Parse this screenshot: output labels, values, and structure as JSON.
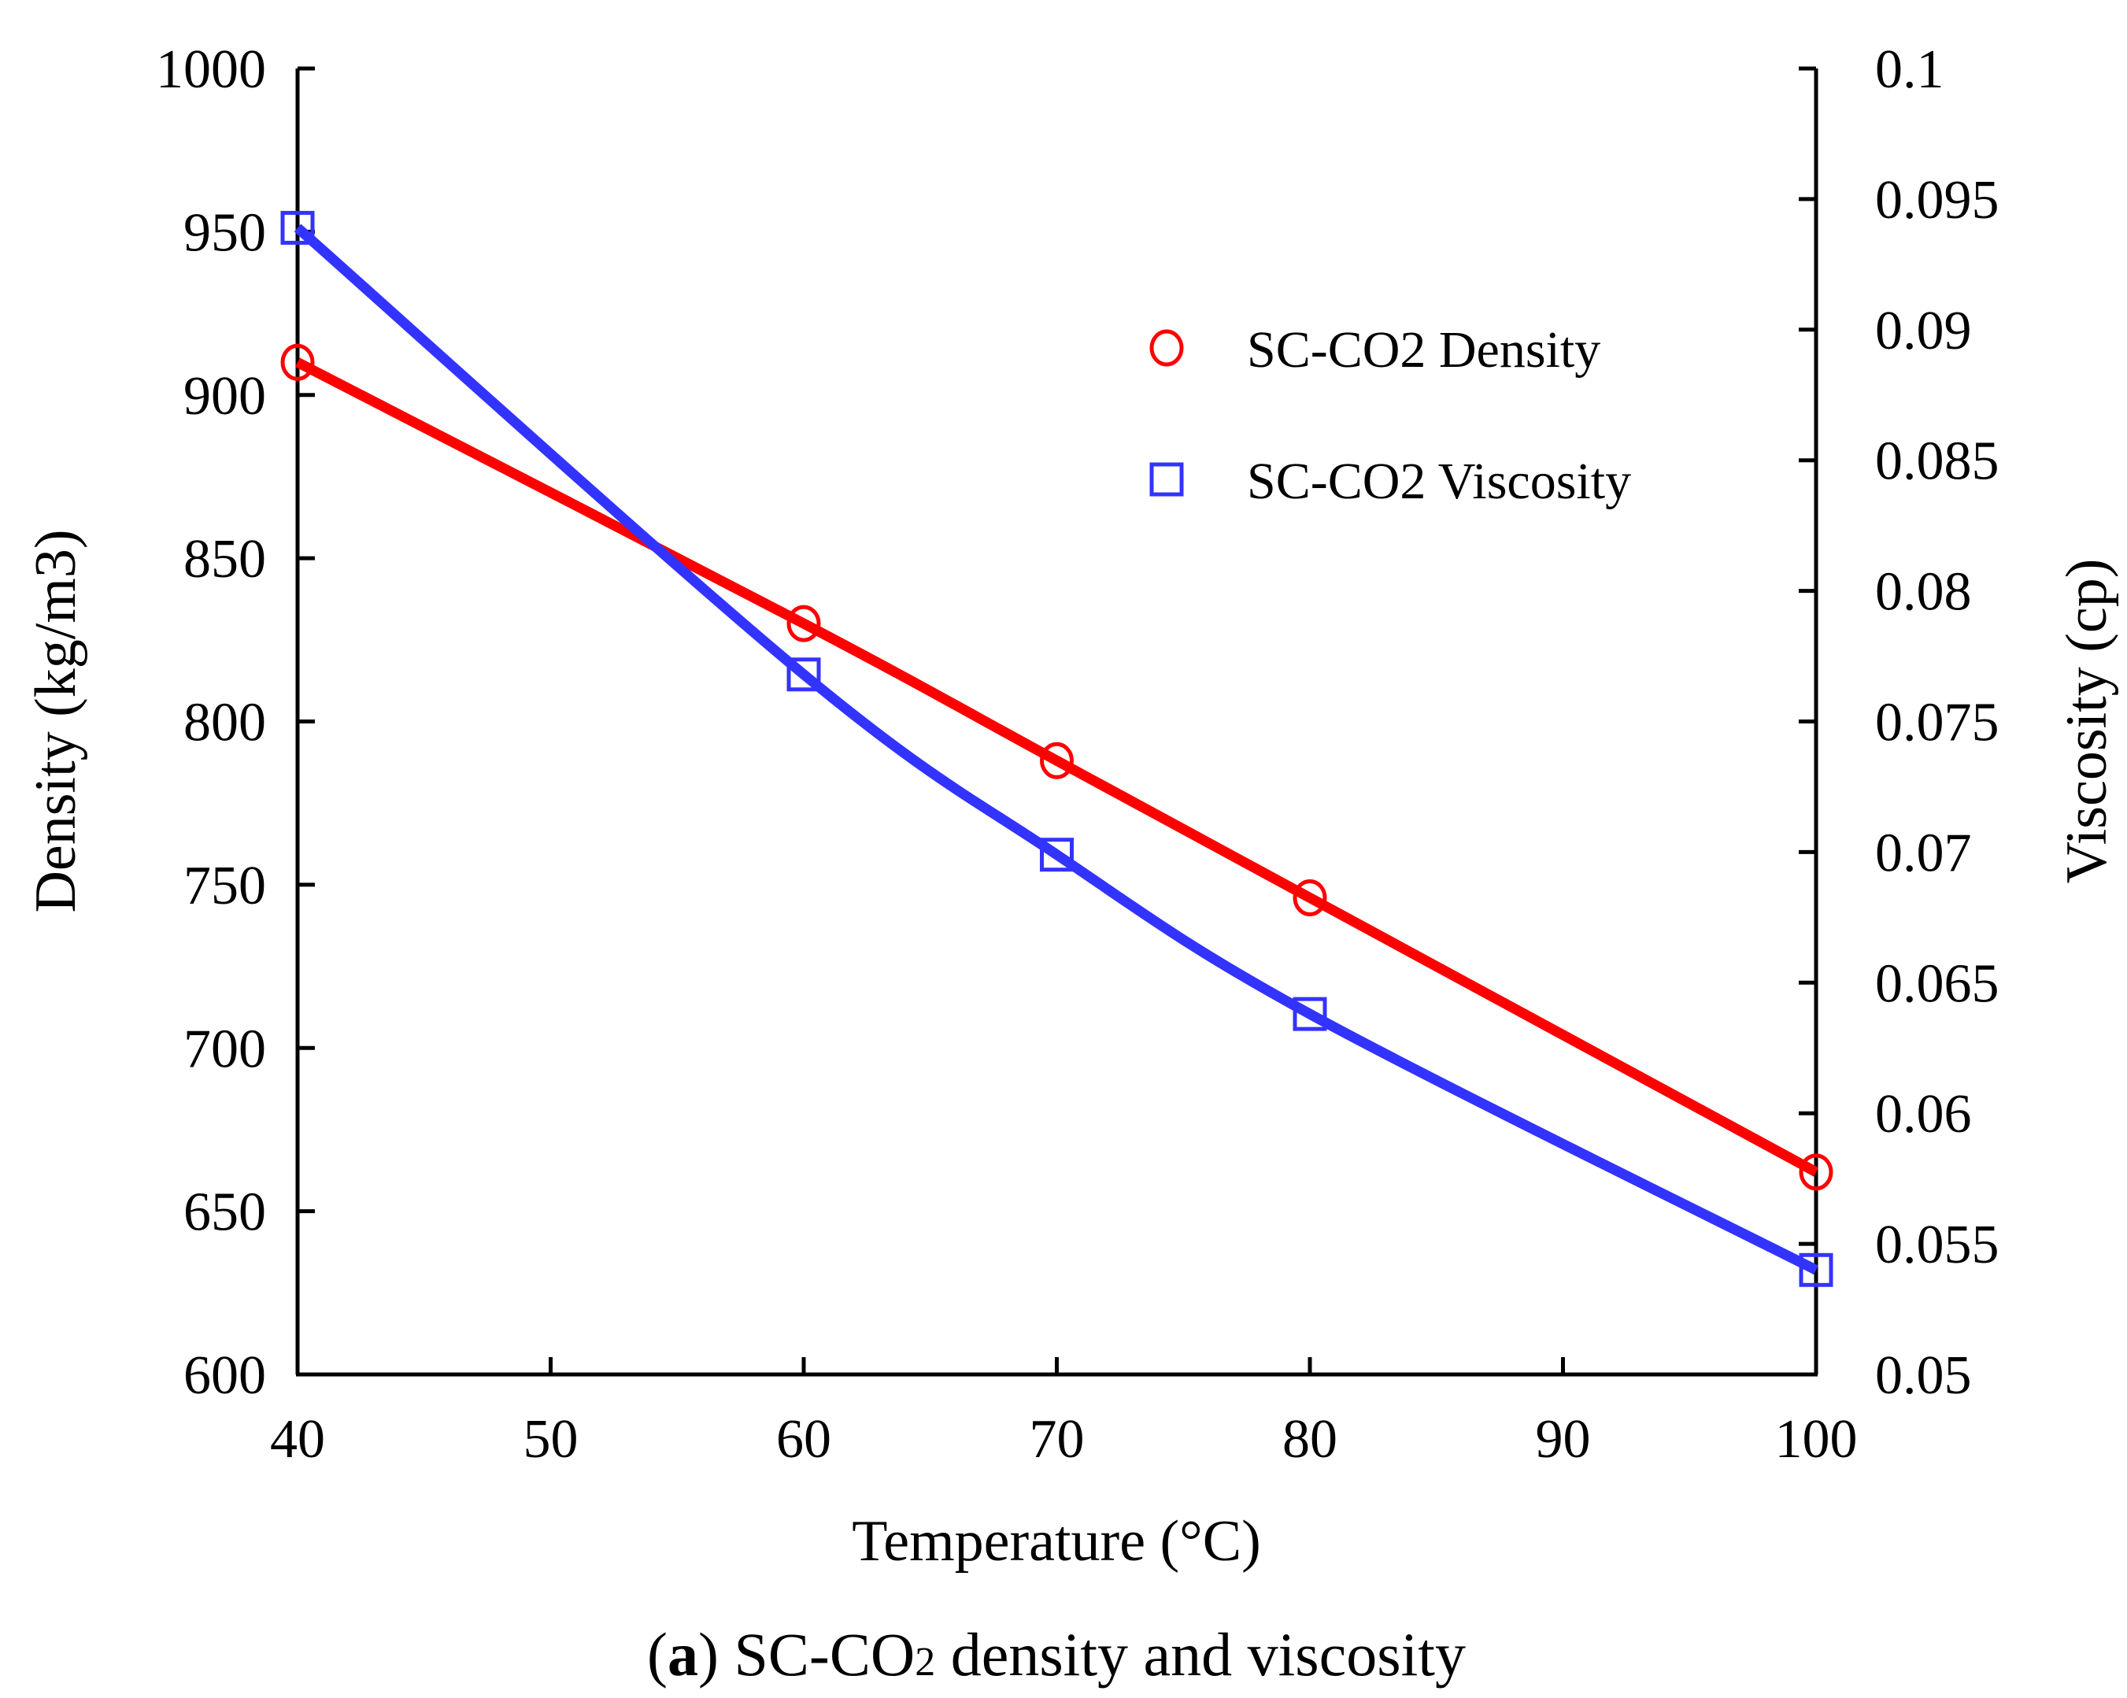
{
  "chart_data": {
    "type": "line",
    "title": "",
    "xlabel": "Temperature (°C)",
    "ylabel": "Density (kg/m3)",
    "y2label": "Viscosity (cp)",
    "xlim": [
      40,
      100
    ],
    "ylim": [
      600,
      1000
    ],
    "y2lim": [
      0.05,
      0.1
    ],
    "xticks": [
      "40",
      "50",
      "60",
      "70",
      "80",
      "90",
      "100"
    ],
    "yticks": [
      "600",
      "650",
      "700",
      "750",
      "800",
      "850",
      "900",
      "950",
      "1000"
    ],
    "y2ticks": [
      "0.05",
      "0.055",
      "0.06",
      "0.065",
      "0.07",
      "0.075",
      "0.08",
      "0.085",
      "0.09",
      "0.095",
      "0.1"
    ],
    "grid": false,
    "legend_position": "top-right",
    "series": [
      {
        "name": "SC-CO2 Density",
        "axis": "left",
        "marker": "circle",
        "color": "#ff0000",
        "x": [
          40,
          60,
          70,
          80,
          100
        ],
        "y": [
          910,
          830,
          788,
          746,
          662
        ]
      },
      {
        "name": "SC-CO2 Viscosity",
        "axis": "right",
        "marker": "square",
        "color": "#3333ff",
        "x": [
          40,
          60,
          70,
          80,
          100
        ],
        "y": [
          0.0939,
          0.0768,
          0.0699,
          0.0638,
          0.054
        ]
      }
    ]
  },
  "caption": {
    "label": "a",
    "part1": "SC-CO",
    "sub": "2",
    "part2": " density and viscosity"
  }
}
